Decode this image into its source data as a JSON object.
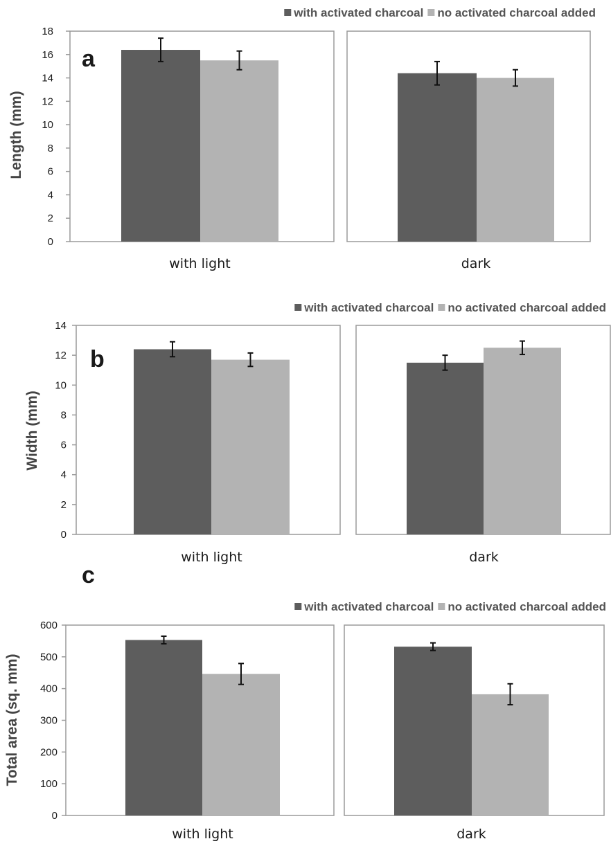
{
  "colors": {
    "with_charcoal": "#5d5d5d",
    "no_charcoal": "#b3b3b3"
  },
  "chart_data": [
    {
      "type": "bar",
      "panel_label": "a",
      "ylabel": "Length (mm)",
      "ylim": [
        0,
        18
      ],
      "yticks": [
        0,
        2,
        4,
        6,
        8,
        10,
        12,
        14,
        16,
        18
      ],
      "categories": [
        "with light",
        "dark"
      ],
      "legend": [
        "with activated charcoal",
        "no activated charcoal added"
      ],
      "legend_position": "top-right",
      "series": [
        {
          "name": "with activated charcoal",
          "values": [
            16.4,
            14.4
          ],
          "errors": [
            1.0,
            1.0
          ]
        },
        {
          "name": "no activated charcoal added",
          "values": [
            15.5,
            14.0
          ],
          "errors": [
            0.8,
            0.7
          ]
        }
      ]
    },
    {
      "type": "bar",
      "panel_label": "b",
      "ylabel": "Width (mm)",
      "ylim": [
        0,
        14
      ],
      "yticks": [
        0,
        2,
        4,
        6,
        8,
        10,
        12,
        14
      ],
      "categories": [
        "with light",
        "dark"
      ],
      "legend": [
        "with activated charcoal",
        "no activated charcoal added"
      ],
      "legend_position": "top-right",
      "series": [
        {
          "name": "with activated charcoal",
          "values": [
            12.4,
            11.5
          ],
          "errors": [
            0.5,
            0.5
          ]
        },
        {
          "name": "no activated charcoal added",
          "values": [
            11.7,
            12.5
          ],
          "errors": [
            0.45,
            0.45
          ]
        }
      ]
    },
    {
      "type": "bar",
      "panel_label": "c",
      "ylabel": "Total area (sq. mm)",
      "ylim": [
        0,
        600
      ],
      "yticks": [
        0,
        100,
        200,
        300,
        400,
        500,
        600
      ],
      "categories": [
        "with light",
        "dark"
      ],
      "legend": [
        "with activated charcoal",
        "no activated charcoal added"
      ],
      "legend_position": "top-right",
      "series": [
        {
          "name": "with activated charcoal",
          "values": [
            553,
            532
          ],
          "errors": [
            12,
            12
          ]
        },
        {
          "name": "no activated charcoal added",
          "values": [
            446,
            382
          ],
          "errors": [
            33,
            33
          ]
        }
      ]
    }
  ]
}
